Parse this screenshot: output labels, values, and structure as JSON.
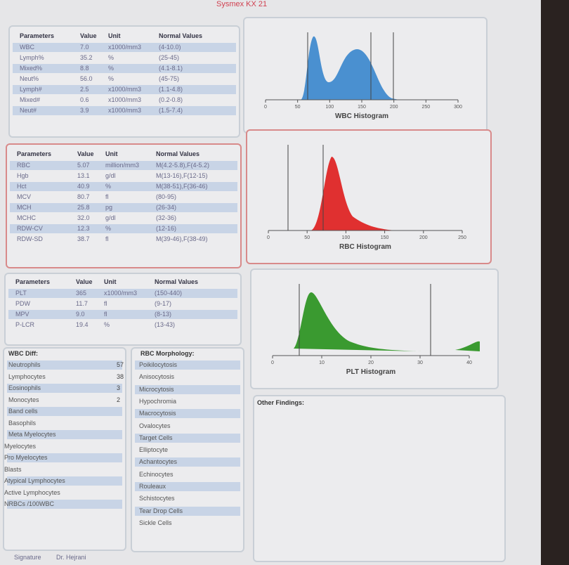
{
  "header": {
    "title": "Sysmex KX 21"
  },
  "wbc_table": {
    "columns": [
      "Parameters",
      "Value",
      "Unit",
      "Normal Values"
    ],
    "rows": [
      [
        "WBC",
        "7.0",
        "x1000/mm3",
        "(4-10.0)"
      ],
      [
        "Lymph%",
        "35.2",
        "%",
        "(25-45)"
      ],
      [
        "Mixed%",
        "8.8",
        "%",
        "(4.1-8.1)"
      ],
      [
        "Neut%",
        "56.0",
        "%",
        "(45-75)"
      ],
      [
        "Lymph#",
        "2.5",
        "x1000/mm3",
        "(1.1-4.8)"
      ],
      [
        "Mixed#",
        "0.6",
        "x1000/mm3",
        "(0.2-0.8)"
      ],
      [
        "Neut#",
        "3.9",
        "x1000/mm3",
        "(1.5-7.4)"
      ]
    ]
  },
  "rbc_table": {
    "columns": [
      "Parameters",
      "Value",
      "Unit",
      "Normal Values"
    ],
    "rows": [
      [
        "RBC",
        "5.07",
        "million/mm3",
        "M(4.2-5.8),F(4-5.2)"
      ],
      [
        "Hgb",
        "13.1",
        "g/dl",
        "M(13-16),F(12-15)"
      ],
      [
        "Hct",
        "40.9",
        "%",
        "M(38-51),F(36-46)"
      ],
      [
        "MCV",
        "80.7",
        "fl",
        "(80-95)"
      ],
      [
        "MCH",
        "25.8",
        "pg",
        "(26-34)"
      ],
      [
        "MCHC",
        "32.0",
        "g/dl",
        "(32-36)"
      ],
      [
        "RDW-CV",
        "12.3",
        "%",
        "(12-16)"
      ],
      [
        "RDW-SD",
        "38.7",
        "fl",
        "M(39-46),F(38-49)"
      ]
    ]
  },
  "plt_table": {
    "columns": [
      "Parameters",
      "Value",
      "Unit",
      "Normal Values"
    ],
    "rows": [
      [
        "PLT",
        "365",
        "x1000/mm3",
        "(150-440)"
      ],
      [
        "PDW",
        "11.7",
        "fl",
        "(9-17)"
      ],
      [
        "MPV",
        "9.0",
        "fl",
        "(8-13)"
      ],
      [
        "P-LCR",
        "19.4",
        "%",
        "(13-43)"
      ]
    ]
  },
  "wbc_diff": {
    "title": "WBC Diff:",
    "rows": [
      [
        "Neutrophils",
        "57"
      ],
      [
        "Lymphocytes",
        "38"
      ],
      [
        "Eosinophils",
        "3"
      ],
      [
        "Monocytes",
        "2"
      ],
      [
        "Band cells"
      ],
      [
        "Basophils"
      ],
      [
        "Meta Myelocytes"
      ],
      [
        "Myelocytes"
      ],
      [
        "Pro Myelocytes"
      ],
      [
        "Blasts"
      ],
      [
        "Atypical Lymphocytes"
      ],
      [
        "Active Lymphocytes"
      ],
      [
        "NRBCs /100WBC"
      ]
    ]
  },
  "rbc_morphology": {
    "title": "RBC Morphology:",
    "items": [
      "Poikilocytosis",
      "Anisocytosis",
      "Microcytosis",
      "Hypochromia",
      "Macrocytosis",
      "Ovalocytes",
      "Target Cells",
      "Elliptocyte",
      "Achantocytes",
      "Echinocytes",
      "Rouleaux",
      "Schistocytes",
      "Tear Drop Cells",
      "Sickle Cells"
    ]
  },
  "histograms": [
    {
      "title": "WBC Histogram",
      "ticks": [
        "0",
        "50",
        "100",
        "150",
        "200",
        "250",
        "300"
      ]
    },
    {
      "title": "RBC Histogram",
      "ticks": [
        "0",
        "50",
        "100",
        "150",
        "200",
        "250"
      ]
    },
    {
      "title": "PLT Histogram",
      "ticks": [
        "0",
        "10",
        "20",
        "30",
        "40"
      ]
    }
  ],
  "other_findings": {
    "title": "Other Findings:"
  },
  "signature": {
    "label": "Signature",
    "name": "Dr. Hejrani"
  }
}
